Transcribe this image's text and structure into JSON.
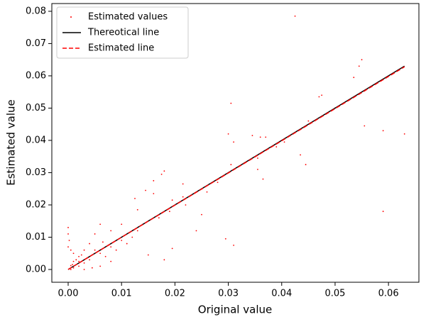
{
  "chart_data": {
    "type": "scatter",
    "x_label": "Original value",
    "y_label": "Estimated value",
    "xlim": [
      -0.00306,
      0.0657
    ],
    "ylim": [
      -0.00396,
      0.0824
    ],
    "xticks": [
      {
        "value": 0,
        "label": "0.00"
      },
      {
        "value": 0.01,
        "label": "0.01"
      },
      {
        "value": 0.02,
        "label": "0.02"
      },
      {
        "value": 0.03,
        "label": "0.03"
      },
      {
        "value": 0.04,
        "label": "0.04"
      },
      {
        "value": 0.05,
        "label": "0.05"
      },
      {
        "value": 0.06,
        "label": "0.06"
      }
    ],
    "yticks": [
      {
        "value": 0,
        "label": "0.00"
      },
      {
        "value": 0.01,
        "label": "0.01"
      },
      {
        "value": 0.02,
        "label": "0.02"
      },
      {
        "value": 0.03,
        "label": "0.03"
      },
      {
        "value": 0.04,
        "label": "0.04"
      },
      {
        "value": 0.05,
        "label": "0.05"
      },
      {
        "value": 0.06,
        "label": "0.06"
      },
      {
        "value": 0.07,
        "label": "0.07"
      },
      {
        "value": 0.08,
        "label": "0.08"
      }
    ],
    "legend": "upper left",
    "series": [
      {
        "name": "Estimated values",
        "type": "scatter",
        "color": "#ff0000",
        "x": [
          0.0425,
          0.055,
          0.0545,
          0.0535,
          0.059,
          0.063,
          0.059,
          0.0555,
          0.047,
          0.0475,
          0.0405,
          0.0435,
          0.0445,
          0.036,
          0.037,
          0.0345,
          0.0305,
          0.0305,
          0.03,
          0.031,
          0.0355,
          0.0365,
          0.031,
          0.0295,
          0.0355,
          0.0215,
          0.0215,
          0.0175,
          0.018,
          0.016,
          0.0145,
          0.016,
          0.0125,
          0.013,
          0.0195,
          0.025,
          0.024,
          0.0195,
          0.018,
          0.015,
          0.012,
          0.01,
          0.008,
          0.006,
          0.005,
          0.004,
          0.003,
          0.002,
          0.001,
          0.0005,
          0.0,
          0.0,
          0.0002,
          0.0,
          0.0005,
          0.001,
          0.0015,
          0.002,
          0.003,
          0.004,
          0.006,
          0.007,
          0.009,
          0.011,
          0.0005,
          0.001,
          0.0003,
          0.0008,
          0.002,
          0.0025,
          0.005,
          0.0065,
          0.008,
          0.01,
          0.013,
          0.014,
          0.017,
          0.019,
          0.022,
          0.026,
          0.028,
          0.033,
          0.039,
          0.045,
          0.05,
          0.0045,
          0.006,
          0.003,
          0.008
        ],
        "values": [
          0.0785,
          0.065,
          0.063,
          0.0595,
          0.043,
          0.042,
          0.018,
          0.0445,
          0.0535,
          0.054,
          0.0395,
          0.0355,
          0.0325,
          0.041,
          0.041,
          0.0415,
          0.0515,
          0.0325,
          0.042,
          0.0395,
          0.031,
          0.028,
          0.0075,
          0.0095,
          0.0345,
          0.0225,
          0.0265,
          0.0295,
          0.0305,
          0.0275,
          0.0245,
          0.0235,
          0.022,
          0.0185,
          0.0215,
          0.017,
          0.012,
          0.0065,
          0.003,
          0.0045,
          0.01,
          0.014,
          0.012,
          0.014,
          0.011,
          0.008,
          0.006,
          0.004,
          0.0025,
          0.0012,
          0.013,
          0.011,
          0.009,
          0.007,
          0.006,
          0.005,
          0.003,
          0.001,
          0.002,
          0.003,
          0.005,
          0.004,
          0.006,
          0.008,
          0.0,
          0.0005,
          0.0003,
          0.0015,
          0.0025,
          0.0045,
          0.006,
          0.0085,
          0.007,
          0.009,
          0.012,
          0.014,
          0.016,
          0.018,
          0.02,
          0.024,
          0.027,
          0.033,
          0.038,
          0.046,
          0.05,
          0.0005,
          0.001,
          0.0,
          0.0025
        ]
      },
      {
        "name": "Thereotical line",
        "type": "line",
        "color": "#000000",
        "linestyle": "solid",
        "x": [
          0,
          0.063
        ],
        "values": [
          0,
          0.063
        ]
      },
      {
        "name": "Estimated line",
        "type": "line",
        "color": "#ff0000",
        "linestyle": "dashed",
        "x": [
          0,
          0.063
        ],
        "values": [
          0,
          0.0628
        ]
      }
    ]
  }
}
